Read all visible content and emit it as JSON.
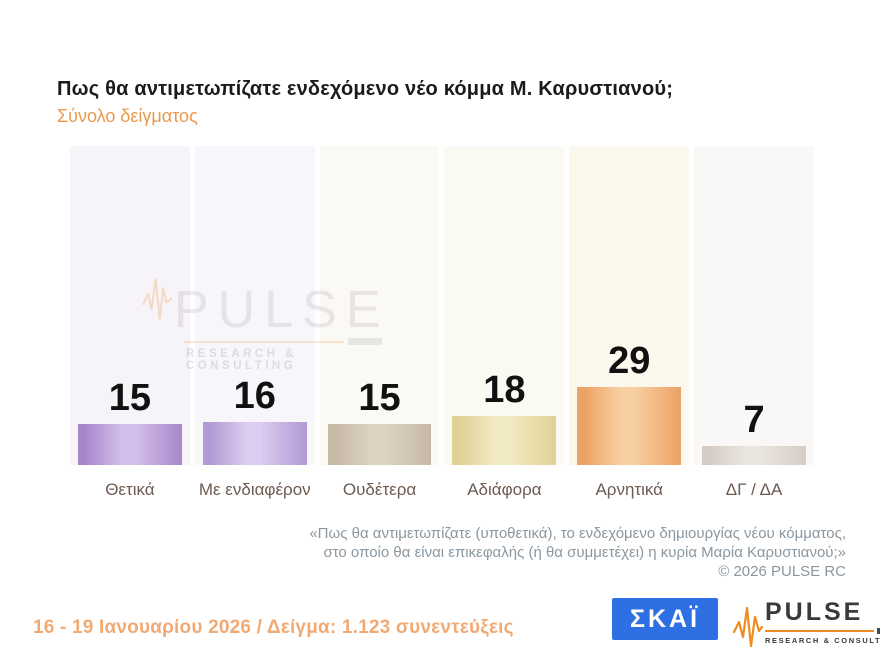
{
  "title": "Πως θα αντιμετωπίζατε ενδεχόμενο νέο κόμμα Μ. Καρυστιανού;",
  "subtitle": "Σύνολο δείγματος",
  "chart_data": {
    "type": "bar",
    "title": "Πως θα αντιμετωπίζατε ενδεχόμενο νέο κόμμα Μ. Καρυστιανού;",
    "subtitle": "Σύνολο δείγματος",
    "categories": [
      "Θετικά",
      "Με ενδιαφέρον",
      "Ουδέτερα",
      "Αδιάφορα",
      "Αρνητικά",
      "ΔΓ / ΔΑ"
    ],
    "values": [
      15,
      16,
      15,
      18,
      29,
      7
    ],
    "value_unit": "percent",
    "ylim": [
      0,
      118
    ],
    "grid": false,
    "legend": false,
    "data_labels": true,
    "panel_colors": [
      "#f6f3f9",
      "#f7f6fb",
      "#fbf9f3",
      "#fbfaf2",
      "#fdf8ee",
      "#faf8f6"
    ],
    "bar_colors": [
      {
        "edge": "#a687c9",
        "center": "#d4bfec"
      },
      {
        "edge": "#b29ad4",
        "center": "#dcccf0"
      },
      {
        "edge": "#c6b9a6",
        "center": "#ddd3c3"
      },
      {
        "edge": "#e0d194",
        "center": "#f1ebc4"
      },
      {
        "edge": "#eca263",
        "center": "#f8cfa3"
      },
      {
        "edge": "#d5cdc5",
        "center": "#eae5df"
      }
    ]
  },
  "watermark": {
    "brand": "PULSE",
    "tagline": "RESEARCH & CONSULTING"
  },
  "footnote": {
    "lines": [
      "«Πως θα αντιμετωπίζατε (υποθετικά), το ενδεχόμενο δημιουργίας νέου κόμματος,",
      "στο οποίο θα είναι επικεφαλής (ή θα συμμετέχει) η κυρία Μαρία Καρυστιανού;»",
      "©  2026  PULSE RC"
    ]
  },
  "footer": {
    "survey_info": "16 - 19 Ιανουαρίου 2026  /  Δείγμα:  1.123 συνεντεύξεις",
    "skai_logo_text": "ΣΚΑΪ",
    "pulse_logo": {
      "brand": "PULSE",
      "tagline": "RESEARCH & CONSULTING"
    }
  },
  "colors": {
    "title_text": "#1b1b1b",
    "subtitle_orange": "#ea9a4e",
    "category_label": "#6d5a51",
    "footnote_gray": "#8b97a0",
    "survey_info_orange": "#f2aa74",
    "skai_blue": "#2e6fe4",
    "pulse_orange": "#ef8c1f",
    "pulse_dark": "#3a3a3a"
  }
}
